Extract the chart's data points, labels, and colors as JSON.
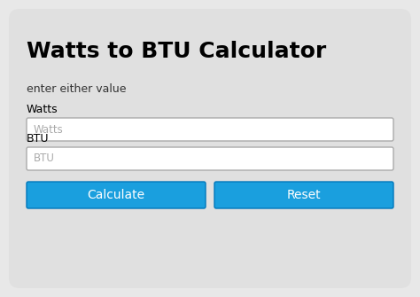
{
  "title": "Watts to BTU Calculator",
  "subtitle": "enter either value",
  "label1": "Watts",
  "label2": "BTU",
  "placeholder1": "Watts",
  "placeholder2": "BTU",
  "btn1": "Calculate",
  "btn2": "Reset",
  "bg_color": "#e8e8e8",
  "card_color": "#e8e8e8",
  "input_bg": "#ffffff",
  "input_border": "#aaaaaa",
  "btn_color": "#1a9fde",
  "btn_border_color": "#0077bb",
  "btn_text_color": "#ffffff",
  "title_color": "#000000",
  "subtitle_color": "#333333",
  "label_color": "#000000",
  "placeholder_color": "#aaaaaa",
  "title_fontsize": 18,
  "subtitle_fontsize": 9,
  "label_fontsize": 9,
  "placeholder_fontsize": 8.5,
  "btn_fontsize": 10
}
